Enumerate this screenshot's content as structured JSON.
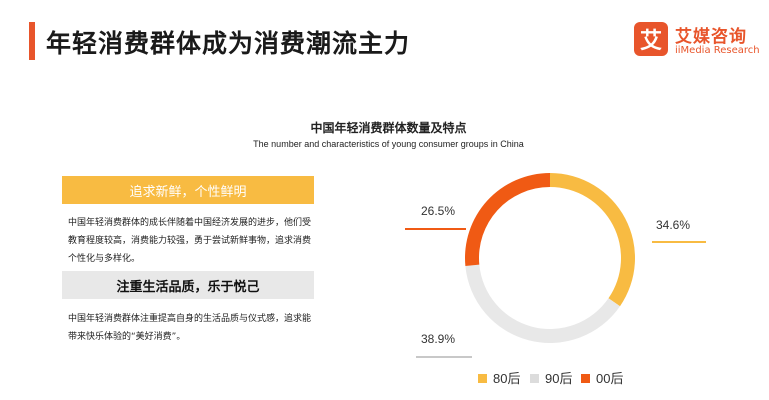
{
  "header": {
    "title": "年轻消费群体成为消费潮流主力",
    "accent_color": "#e8552b"
  },
  "logo": {
    "mark": "艾",
    "name_cn": "艾媒咨询",
    "name_en": "iiMedia Research"
  },
  "cards": [
    {
      "heading": "追求新鲜，个性鲜明",
      "text": "中国年轻消费群体的成长伴随着中国经济发展的进步，他们受教育程度较高，消费能力较强，勇于尝试新鲜事物，追求消费个性化与多样化。"
    },
    {
      "heading": "注重生活品质，乐于悦己",
      "text": "中国年轻消费群体注重提高自身的生活品质与仪式感，追求能带来快乐体验的“美好消费”。"
    }
  ],
  "chart_data": {
    "type": "pie",
    "title": "中国年轻消费群体数量及特点",
    "subtitle": "The number and characteristics of young consumer groups in China",
    "donut": true,
    "legend_position": "bottom",
    "series": [
      {
        "name": "80后",
        "value": 34.6,
        "label": "34.6%",
        "color": "#f8bb42"
      },
      {
        "name": "90后",
        "value": 38.9,
        "label": "38.9%",
        "color": "#e8e8e8"
      },
      {
        "name": "00后",
        "value": 26.5,
        "label": "26.5%",
        "color": "#f05a14"
      }
    ]
  }
}
